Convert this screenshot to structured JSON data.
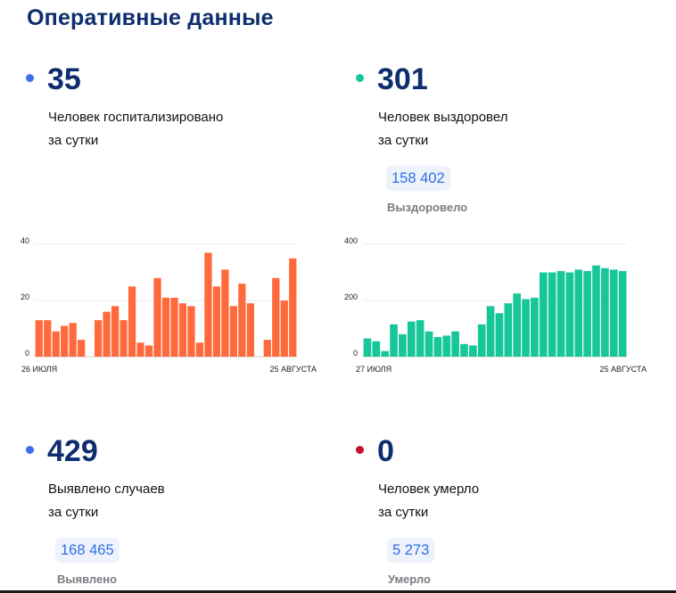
{
  "title": "Оперативные данные",
  "stats": {
    "hospitalized": {
      "value": "35",
      "label_line1": "Человек госпитализировано",
      "label_line2": "за сутки",
      "color": "#3f6ff0"
    },
    "recovered": {
      "value": "301",
      "label_line1": "Человек выздоровел",
      "label_line2": "за сутки",
      "total": "158 402",
      "total_label": "Выздоровело",
      "color": "#17c79a"
    },
    "cases": {
      "value": "429",
      "label_line1": "Выявлено случаев",
      "label_line2": "за сутки",
      "total": "168 465",
      "total_label": "Выявлено",
      "color": "#3f6ff0"
    },
    "deaths": {
      "value": "0",
      "label_line1": "Человек умерло",
      "label_line2": "за сутки",
      "total": "5 273",
      "total_label": "Умерло",
      "color": "#c7102b"
    }
  },
  "chart_data": [
    {
      "type": "bar",
      "color": "#ff6a3d",
      "ylim": [
        0,
        40
      ],
      "yticks": [
        "0",
        "20",
        "40"
      ],
      "ytick_values": [
        0,
        20,
        40
      ],
      "x_start_label": "26 ИЮЛЯ",
      "x_end_label": "25 АВГУСТА",
      "values": [
        13,
        13,
        9,
        11,
        12,
        6,
        null,
        13,
        16,
        18,
        13,
        25,
        5,
        4,
        28,
        21,
        21,
        19,
        18,
        5,
        37,
        25,
        31,
        18,
        26,
        19,
        null,
        6,
        28,
        20,
        35
      ]
    },
    {
      "type": "bar",
      "color": "#17c79a",
      "ylim": [
        0,
        400
      ],
      "yticks": [
        "0",
        "200",
        "400"
      ],
      "ytick_values": [
        0,
        200,
        400
      ],
      "x_start_label": "27 ИЮЛЯ",
      "x_end_label": "25 АВГУСТА",
      "values": [
        65,
        55,
        20,
        115,
        80,
        125,
        130,
        90,
        70,
        75,
        90,
        45,
        40,
        115,
        180,
        155,
        190,
        225,
        205,
        210,
        300,
        300,
        305,
        300,
        310,
        305,
        325,
        315,
        310,
        305
      ]
    }
  ]
}
